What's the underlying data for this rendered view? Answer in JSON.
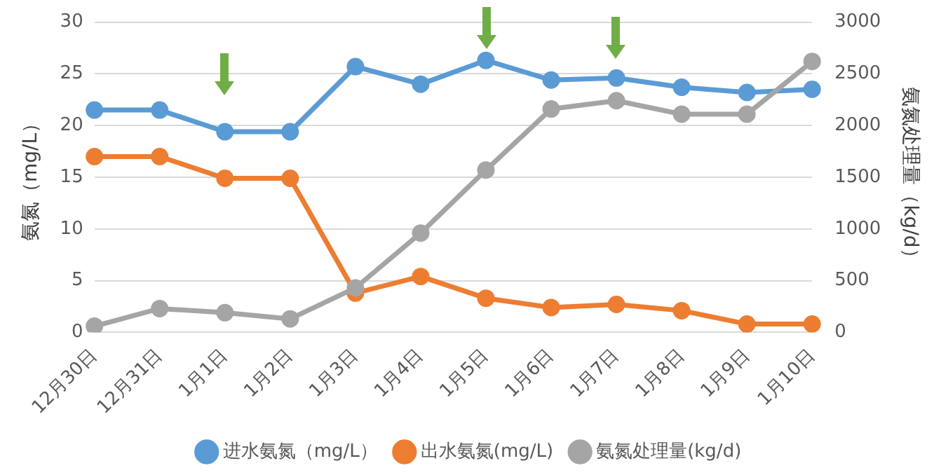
{
  "chart_data": {
    "type": "line",
    "categories": [
      "12月30日",
      "12月31日",
      "1月1日",
      "1月2日",
      "1月3日",
      "1月4日",
      "1月5日",
      "1月6日",
      "1月7日",
      "1月8日",
      "1月9日",
      "1月10日"
    ],
    "ylabel": "氨氮（mg/L）",
    "y2label": "氨氮处理量（kg/d）",
    "series": [
      {
        "name": "进水氨氮（mg/L）",
        "color": "#5b9bd5",
        "values": [
          21.5,
          21.5,
          19.4,
          19.4,
          25.7,
          24.0,
          26.3,
          24.4,
          24.6,
          23.7,
          23.2,
          23.5
        ]
      },
      {
        "name": "出水氨氮(mg/L)",
        "color": "#ed7d31",
        "values": [
          17.0,
          17.0,
          14.9,
          14.9,
          3.8,
          5.4,
          3.3,
          2.4,
          2.7,
          2.1,
          0.8,
          0.8
        ]
      },
      {
        "name": "氨氮处理量(kg/d)",
        "color": "#a5a5a5",
        "axis": "y2",
        "values": [
          60,
          230,
          190,
          130,
          430,
          960,
          1570,
          2160,
          2240,
          2110,
          2110,
          2620
        ]
      }
    ],
    "ylim": [
      0,
      30
    ],
    "yticks": [
      0,
      5,
      10,
      15,
      20,
      25,
      30
    ],
    "y2lim": [
      0,
      3000
    ],
    "y2ticks": [
      0,
      500,
      1000,
      1500,
      2000,
      2500,
      3000
    ],
    "grid": "y",
    "legend": "bottom",
    "marker": "circle",
    "line_style": "solid"
  }
}
